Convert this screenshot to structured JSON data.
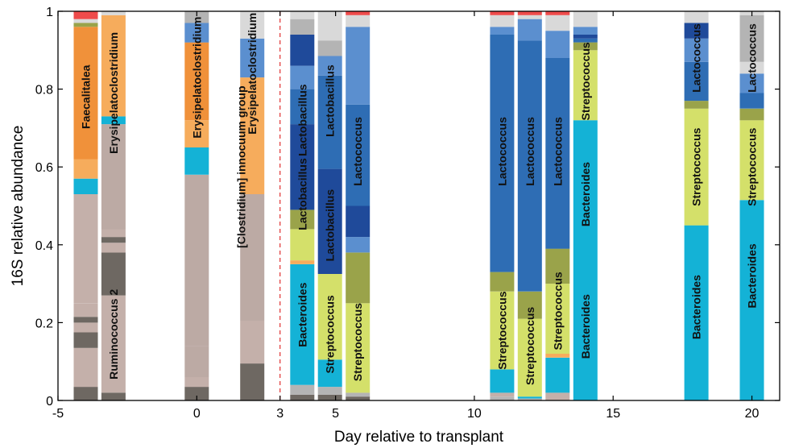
{
  "chart_data": {
    "type": "bar",
    "stacked": true,
    "xlabel": "Day relative to transplant",
    "ylabel": "16S relative abundance",
    "xlim": [
      -5,
      21
    ],
    "ylim": [
      0,
      1
    ],
    "xticks": [
      -5,
      0,
      3,
      5,
      10,
      15,
      20
    ],
    "yticks": [
      0,
      0.2,
      0.4,
      0.6,
      0.8,
      1
    ],
    "vline": {
      "x": 3,
      "style": "dashed",
      "color": "#e03030"
    },
    "grid": false,
    "legend": "none",
    "colors": {
      "Faecalitalea": "#f0913a",
      "Erysipelatoclostridium": "#f6ac5c",
      "[Clostridium] innocuum group": "#bcaaa4",
      "Ruminococcus 2": "#c4b0aa",
      "Lactobacillus": "#1f4a9a",
      "Lactococcus": "#2e6db4",
      "Streptococcus": "#d4e06a",
      "Bacteroides": "#14b2d6",
      "other_blue": "#5b8fcf",
      "other_olive": "#9aa34a",
      "other_gray": "#b4b4b4",
      "other_dark": "#6e6862",
      "other_red": "#ee4b4b",
      "other_lightgray": "#d9d9d9"
    },
    "samples": [
      {
        "day": -4,
        "segments": [
          {
            "taxon": "other_dark",
            "value": 0.035
          },
          {
            "taxon": "Ruminococcus 2",
            "value": 0.1
          },
          {
            "taxon": "other_dark",
            "value": 0.04
          },
          {
            "taxon": "Ruminococcus 2",
            "value": 0.025
          },
          {
            "taxon": "other_dark",
            "value": 0.015
          },
          {
            "taxon": "Ruminococcus 2",
            "value": 0.035
          },
          {
            "taxon": "Ruminococcus 2",
            "value": 0.28
          },
          {
            "taxon": "Bacteroides",
            "value": 0.04
          },
          {
            "taxon": "Erysipelatoclostridium",
            "value": 0.05
          },
          {
            "taxon": "Faecalitalea",
            "value": 0.34
          },
          {
            "taxon": "other_olive",
            "value": 0.01
          },
          {
            "taxon": "other_lightgray",
            "value": 0.01
          },
          {
            "taxon": "other_red",
            "value": 0.02
          }
        ]
      },
      {
        "day": -3,
        "segments": [
          {
            "taxon": "other_dark",
            "value": 0.02
          },
          {
            "taxon": "Ruminococcus 2",
            "value": 0.25
          },
          {
            "taxon": "other_dark",
            "value": 0.11
          },
          {
            "taxon": "Ruminococcus 2",
            "value": 0.025
          },
          {
            "taxon": "other_dark",
            "value": 0.015
          },
          {
            "taxon": "Ruminococcus 2",
            "value": 0.02
          },
          {
            "taxon": "[Clostridium] innocuum group",
            "value": 0.27
          },
          {
            "taxon": "Bacteroides",
            "value": 0.02
          },
          {
            "taxon": "Erysipelatoclostridium",
            "value": 0.26
          },
          {
            "taxon": "other_lightgray",
            "value": 0.01
          }
        ]
      },
      {
        "day": 0,
        "segments": [
          {
            "taxon": "other_dark",
            "value": 0.035
          },
          {
            "taxon": "Ruminococcus 2",
            "value": 0.025
          },
          {
            "taxon": "[Clostridium] innocuum group",
            "value": 0.08
          },
          {
            "taxon": "[Clostridium] innocuum group",
            "value": 0.44
          },
          {
            "taxon": "Bacteroides",
            "value": 0.07
          },
          {
            "taxon": "Erysipelatoclostridium",
            "value": 0.07
          },
          {
            "taxon": "Faecalitalea",
            "value": 0.2
          },
          {
            "taxon": "other_blue",
            "value": 0.05
          },
          {
            "taxon": "other_gray",
            "value": 0.03
          }
        ]
      },
      {
        "day": 2,
        "segments": [
          {
            "taxon": "other_dark",
            "value": 0.095
          },
          {
            "taxon": "Ruminococcus 2",
            "value": 0.11
          },
          {
            "taxon": "[Clostridium] innocuum group",
            "value": 0.325
          },
          {
            "taxon": "Erysipelatoclostridium",
            "value": 0.3
          },
          {
            "taxon": "other_blue",
            "value": 0.1
          },
          {
            "taxon": "other_lightgray",
            "value": 0.07
          }
        ]
      },
      {
        "day": 3.8,
        "segments": [
          {
            "taxon": "other_dark",
            "value": 0.015
          },
          {
            "taxon": "other_gray",
            "value": 0.025
          },
          {
            "taxon": "Bacteroides",
            "value": 0.31
          },
          {
            "taxon": "Erysipelatoclostridium",
            "value": 0.01
          },
          {
            "taxon": "Streptococcus",
            "value": 0.08
          },
          {
            "taxon": "other_olive",
            "value": 0.05
          },
          {
            "taxon": "Lactobacillus",
            "value": 0.22
          },
          {
            "taxon": "Lactococcus",
            "value": 0.09
          },
          {
            "taxon": "other_blue",
            "value": 0.06
          },
          {
            "taxon": "Lactobacillus",
            "value": 0.08
          },
          {
            "taxon": "other_gray",
            "value": 0.04
          },
          {
            "taxon": "other_lightgray",
            "value": 0.07
          }
        ]
      },
      {
        "day": 4.8,
        "segments": [
          {
            "taxon": "other_dark",
            "value": 0.015
          },
          {
            "taxon": "other_gray",
            "value": 0.02
          },
          {
            "taxon": "Bacteroides",
            "value": 0.07
          },
          {
            "taxon": "Streptococcus",
            "value": 0.22
          },
          {
            "taxon": "Lactobacillus",
            "value": 0.27
          },
          {
            "taxon": "Lactococcus",
            "value": 0.24
          },
          {
            "taxon": "other_blue",
            "value": 0.05
          },
          {
            "taxon": "other_gray",
            "value": 0.04
          },
          {
            "taxon": "other_lightgray",
            "value": 0.075
          }
        ]
      },
      {
        "day": 5.8,
        "segments": [
          {
            "taxon": "other_dark",
            "value": 0.01
          },
          {
            "taxon": "other_gray",
            "value": 0.01
          },
          {
            "taxon": "Streptococcus",
            "value": 0.23
          },
          {
            "taxon": "other_olive",
            "value": 0.13
          },
          {
            "taxon": "other_blue",
            "value": 0.04
          },
          {
            "taxon": "Lactobacillus",
            "value": 0.08
          },
          {
            "taxon": "Lactococcus",
            "value": 0.26
          },
          {
            "taxon": "other_blue",
            "value": 0.2
          },
          {
            "taxon": "other_lightgray",
            "value": 0.03
          },
          {
            "taxon": "other_red",
            "value": 0.01
          }
        ]
      },
      {
        "day": 11,
        "segments": [
          {
            "taxon": "other_gray",
            "value": 0.01
          },
          {
            "taxon": "Ruminococcus 2",
            "value": 0.01
          },
          {
            "taxon": "Bacteroides",
            "value": 0.06
          },
          {
            "taxon": "Streptococcus",
            "value": 0.2
          },
          {
            "taxon": "other_olive",
            "value": 0.05
          },
          {
            "taxon": "Lactococcus",
            "value": 0.61
          },
          {
            "taxon": "other_blue",
            "value": 0.02
          },
          {
            "taxon": "other_lightgray",
            "value": 0.03
          },
          {
            "taxon": "other_red",
            "value": 0.01
          }
        ]
      },
      {
        "day": 12,
        "segments": [
          {
            "taxon": "other_gray",
            "value": 0.005
          },
          {
            "taxon": "Bacteroides",
            "value": 0.005
          },
          {
            "taxon": "Streptococcus",
            "value": 0.2
          },
          {
            "taxon": "other_olive",
            "value": 0.07
          },
          {
            "taxon": "Lactococcus",
            "value": 0.645
          },
          {
            "taxon": "other_blue",
            "value": 0.055
          },
          {
            "taxon": "other_lightgray",
            "value": 0.01
          },
          {
            "taxon": "other_red",
            "value": 0.01
          }
        ]
      },
      {
        "day": 13,
        "segments": [
          {
            "taxon": "Ruminococcus 2",
            "value": 0.02
          },
          {
            "taxon": "Bacteroides",
            "value": 0.09
          },
          {
            "taxon": "Erysipelatoclostridium",
            "value": 0.01
          },
          {
            "taxon": "Streptococcus",
            "value": 0.18
          },
          {
            "taxon": "other_olive",
            "value": 0.09
          },
          {
            "taxon": "Lactococcus",
            "value": 0.49
          },
          {
            "taxon": "other_blue",
            "value": 0.07
          },
          {
            "taxon": "other_lightgray",
            "value": 0.04
          },
          {
            "taxon": "other_red",
            "value": 0.01
          }
        ]
      },
      {
        "day": 14,
        "segments": [
          {
            "taxon": "Bacteroides",
            "value": 0.72
          },
          {
            "taxon": "Streptococcus",
            "value": 0.18
          },
          {
            "taxon": "other_olive",
            "value": 0.02
          },
          {
            "taxon": "Lactococcus",
            "value": 0.01
          },
          {
            "taxon": "Lactobacillus",
            "value": 0.01
          },
          {
            "taxon": "other_blue",
            "value": 0.02
          },
          {
            "taxon": "other_lightgray",
            "value": 0.04
          }
        ]
      },
      {
        "day": 18,
        "segments": [
          {
            "taxon": "Bacteroides",
            "value": 0.45
          },
          {
            "taxon": "Streptococcus",
            "value": 0.3
          },
          {
            "taxon": "other_olive",
            "value": 0.02
          },
          {
            "taxon": "Lactococcus",
            "value": 0.1
          },
          {
            "taxon": "other_blue",
            "value": 0.06
          },
          {
            "taxon": "Lactobacillus",
            "value": 0.04
          },
          {
            "taxon": "other_lightgray",
            "value": 0.03
          }
        ]
      },
      {
        "day": 20,
        "segments": [
          {
            "taxon": "Bacteroides",
            "value": 0.515
          },
          {
            "taxon": "Streptococcus",
            "value": 0.205
          },
          {
            "taxon": "other_olive",
            "value": 0.03
          },
          {
            "taxon": "Lactococcus",
            "value": 0.04
          },
          {
            "taxon": "other_blue",
            "value": 0.05
          },
          {
            "taxon": "other_lightgray",
            "value": 0.03
          },
          {
            "taxon": "other_gray",
            "value": 0.12
          },
          {
            "taxon": "other_lightgray",
            "value": 0.01
          }
        ]
      }
    ],
    "annotations": [
      {
        "text": "Faecalitalea",
        "day": -4,
        "y": 0.78
      },
      {
        "text": "Erysipelatoclostridium",
        "day": -3,
        "y": 0.79
      },
      {
        "text": "Ruminococcus 2",
        "day": -3,
        "y": 0.17
      },
      {
        "text": "Erysipelatoclostridium",
        "day": 0,
        "y": 0.83
      },
      {
        "text": "Erysipelatoclostridium",
        "day": 2,
        "y": 0.84
      },
      {
        "text": "[Clostridium] innocuum group",
        "day": 1.6,
        "y": 0.6
      },
      {
        "text": "Lactobacillus",
        "day": 3.8,
        "y": 0.72
      },
      {
        "text": "Lactobacillus",
        "day": 3.8,
        "y": 0.53
      },
      {
        "text": "Bacteroides",
        "day": 3.8,
        "y": 0.22
      },
      {
        "text": "Lactobacillus",
        "day": 4.8,
        "y": 0.77
      },
      {
        "text": "Lactobacillus",
        "day": 4.8,
        "y": 0.45
      },
      {
        "text": "Streptococcus",
        "day": 4.8,
        "y": 0.17
      },
      {
        "text": "Lactococcus",
        "day": 5.8,
        "y": 0.64
      },
      {
        "text": "Streptococcus",
        "day": 5.8,
        "y": 0.15
      },
      {
        "text": "Lactococcus",
        "day": 11,
        "y": 0.64
      },
      {
        "text": "Streptococcus",
        "day": 11,
        "y": 0.18
      },
      {
        "text": "Lactococcus",
        "day": 12,
        "y": 0.64
      },
      {
        "text": "Streptococcus",
        "day": 12,
        "y": 0.14
      },
      {
        "text": "Lactococcus",
        "day": 13,
        "y": 0.64
      },
      {
        "text": "Streptococcus",
        "day": 13,
        "y": 0.23
      },
      {
        "text": "Streptococcus",
        "day": 14,
        "y": 0.82
      },
      {
        "text": "Bacteroides",
        "day": 14,
        "y": 0.53
      },
      {
        "text": "Bacteroides",
        "day": 14,
        "y": 0.19
      },
      {
        "text": "Lactococcus",
        "day": 18,
        "y": 0.88
      },
      {
        "text": "Streptococcus",
        "day": 18,
        "y": 0.6
      },
      {
        "text": "Bacteroides",
        "day": 18,
        "y": 0.24
      },
      {
        "text": "Streptococcus",
        "day": 20,
        "y": 0.6
      },
      {
        "text": "Bacteroides",
        "day": 20,
        "y": 0.32
      },
      {
        "text": "Lactococcus",
        "day": 20,
        "y": 0.88
      }
    ]
  }
}
